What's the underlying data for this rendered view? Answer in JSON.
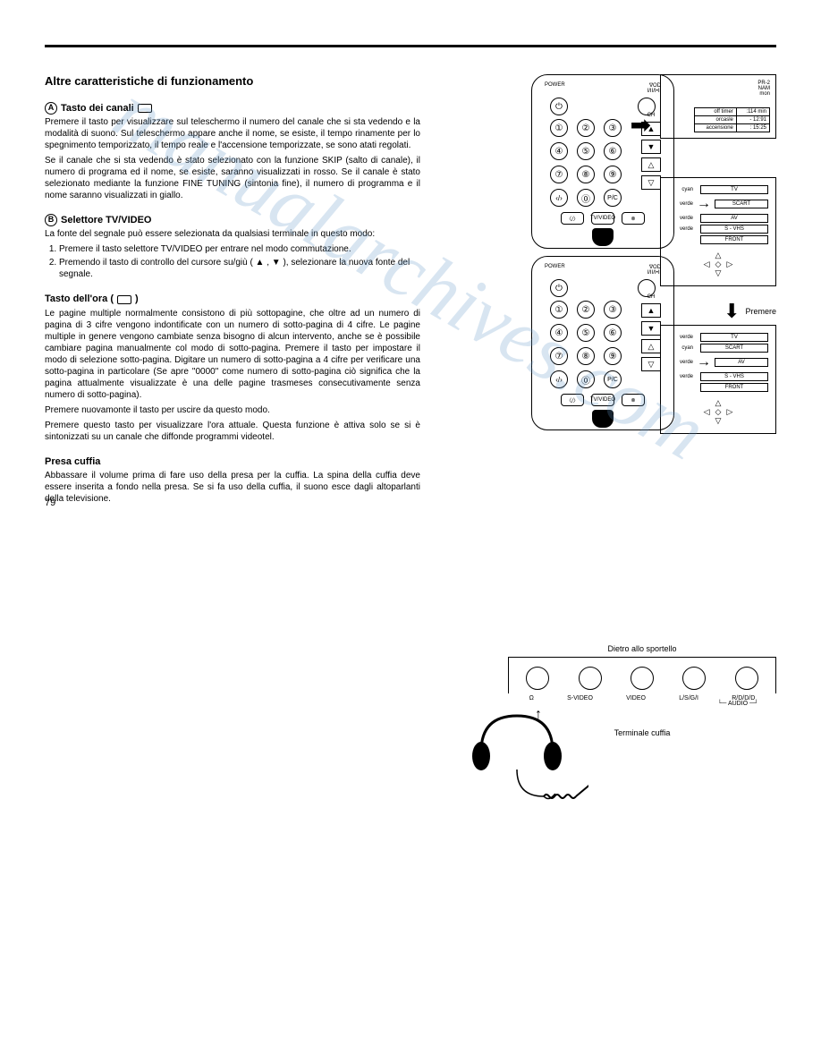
{
  "watermark": "manualarchives.com",
  "title": "Altre caratteristiche di funzionamento",
  "sectionA": {
    "letter": "A",
    "head": "Tasto dei canali",
    "p1": "Premere il tasto per visualizzare sul teleschermo il numero del canale che si sta vedendo e la modalità di suono. Sul teleschermo appare anche il nome, se esiste, il tempo rinamente per lo spegnimento temporizzato, il tempo reale e l'accensione temporizzate, se sono atati regolati.",
    "p2": "Se il canale che si sta vedendo è stato selezionato con la funzione SKIP (salto di canale), il numero di programa ed il nome, se esiste, saranno visualizzati in rosso. Se il canale è stato selezionato mediante la funzione FINE TUNING (sintonia fine), il numero di programma e il nome saranno visualizzati in giallo."
  },
  "sectionB": {
    "letter": "B",
    "head": "Selettore TV/VIDEO",
    "p1": "La fonte del segnale può essere selezionata da qualsiasi terminale in questo modo:",
    "li1": "Premere il tasto selettore TV/VIDEO per entrare nel modo commutazione.",
    "li2": "Premendo il tasto di controllo del cursore su/giù ( ▲ , ▼ ), selezionare la nuova fonte del segnale."
  },
  "sectionC": {
    "head": "Tasto dell'ora (",
    "p1": "Le pagine multiple normalmente consistono di più sottopagine, che oltre ad un numero di pagina di 3 cifre vengono indontificate con un numero di sotto-pagina di 4 cifre. Le pagine multiple in genere vengono cambiate senza bisogno di alcun intervento, anche se è possibile cambiare pagina manualmente col modo di sotto-pagina. Premere il tasto per impostare il modo di selezione sotto-pagina. Digitare un numero di sotto-pagina a 4 cifre per verificare una sotto-pagina in particolare (Se apre \"0000\" come numero di sotto-pagina ciò significa che la pagina attualmente visualizzate è una delle pagine trasmeses consecutivamente senza numero di sotto-pagina).",
    "p2": "Premere nuovamonte il tasto per uscire da questo modo.",
    "p3": "Premere questo tasto per visualizzare l'ora attuale. Questa funzione è attiva solo se si è sintonizzati su un canale che diffonde programmi videotel."
  },
  "sectionD": {
    "head": "Presa cuffia",
    "p1": "Abbassare il volume prima di fare uso della presa per la cuffia. La spina della cuffia deve essere inserita a fondo nella presa. Se si fa uso della cuffia, il suono esce dagli altoparlanti della televisione."
  },
  "pageNumber": "79",
  "remote": {
    "power": "POWER",
    "vod": "∇OD",
    "mode": "I/II/I•II",
    "keys": [
      "①",
      "②",
      "③",
      "④",
      "⑤",
      "⑥",
      "⑦",
      "⑧",
      "⑨"
    ],
    "ch": "CH",
    "btnA": "‹/›",
    "btnB": "⓪",
    "btnC": "P/C",
    "rectA": "〈/〉",
    "rectB": "TV/VIDEO",
    "rectC": "⊗"
  },
  "osd": {
    "line1": "PR-2",
    "line2": "NAM",
    "line3": "mon",
    "tbl": [
      [
        "off timer",
        ":114 min"
      ],
      [
        "orcasle",
        "- 12:91"
      ],
      [
        "accensione",
        ": 15:25"
      ]
    ]
  },
  "inputPanel1": {
    "rows": [
      {
        "color": "cyan",
        "arrow": "",
        "label": "TV"
      },
      {
        "color": "verde",
        "arrow": "→",
        "label": "SCART"
      },
      {
        "color": "verde",
        "arrow": "",
        "label": "AV"
      },
      {
        "color": "verde",
        "arrow": "",
        "label": "S - VHS"
      },
      {
        "color": "",
        "arrow": "",
        "label": "FRONT"
      }
    ]
  },
  "inputPanel2": {
    "rows": [
      {
        "color": "verde",
        "arrow": "",
        "label": "TV"
      },
      {
        "color": "cyan",
        "arrow": "",
        "label": "SCART"
      },
      {
        "color": "verde",
        "arrow": "→",
        "label": "AV"
      },
      {
        "color": "verde",
        "arrow": "",
        "label": "S - VHS"
      },
      {
        "color": "",
        "arrow": "",
        "label": "FRONT"
      }
    ]
  },
  "premere": "Premere",
  "bottomDiagram": {
    "topLabel": "Dietro allo sportello",
    "jacks": [
      "Ω",
      "S-VIDEO",
      "VIDEO",
      "L/S/G/I",
      "R/D/D/D"
    ],
    "audio": "AUDIO",
    "termLabel": "Terminale cuffia"
  }
}
